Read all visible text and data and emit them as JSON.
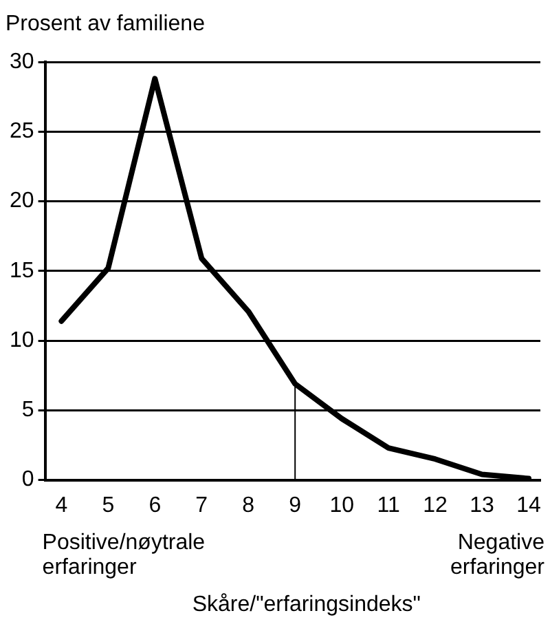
{
  "chart_data": {
    "type": "line",
    "ylabel": "Prosent av familiene",
    "xlabel": "Skåre/\"erfaringsindeks\"",
    "x": [
      4,
      5,
      6,
      7,
      8,
      9,
      10,
      11,
      12,
      13,
      14
    ],
    "series": [
      {
        "color": "#000000",
        "values": [
          11.4,
          15.2,
          28.8,
          15.9,
          12.1,
          6.9,
          4.4,
          2.3,
          1.5,
          0.4,
          0.1
        ]
      }
    ],
    "xlim": [
      3.65,
      14.25
    ],
    "xticks": [
      4,
      5,
      6,
      7,
      8,
      9,
      10,
      11,
      12,
      13,
      14
    ],
    "ylim": [
      0,
      30
    ],
    "yticks": [
      0,
      5,
      10,
      15,
      20,
      25,
      30
    ],
    "grid": "y",
    "legend": false,
    "marker": "none",
    "line_style": "solid",
    "ref_lines": [
      {
        "axis": "x",
        "value": 9,
        "color": "#000000"
      }
    ],
    "annotations": [
      "Positive/nøytrale erfaringer",
      "Negative erfaringer"
    ]
  }
}
